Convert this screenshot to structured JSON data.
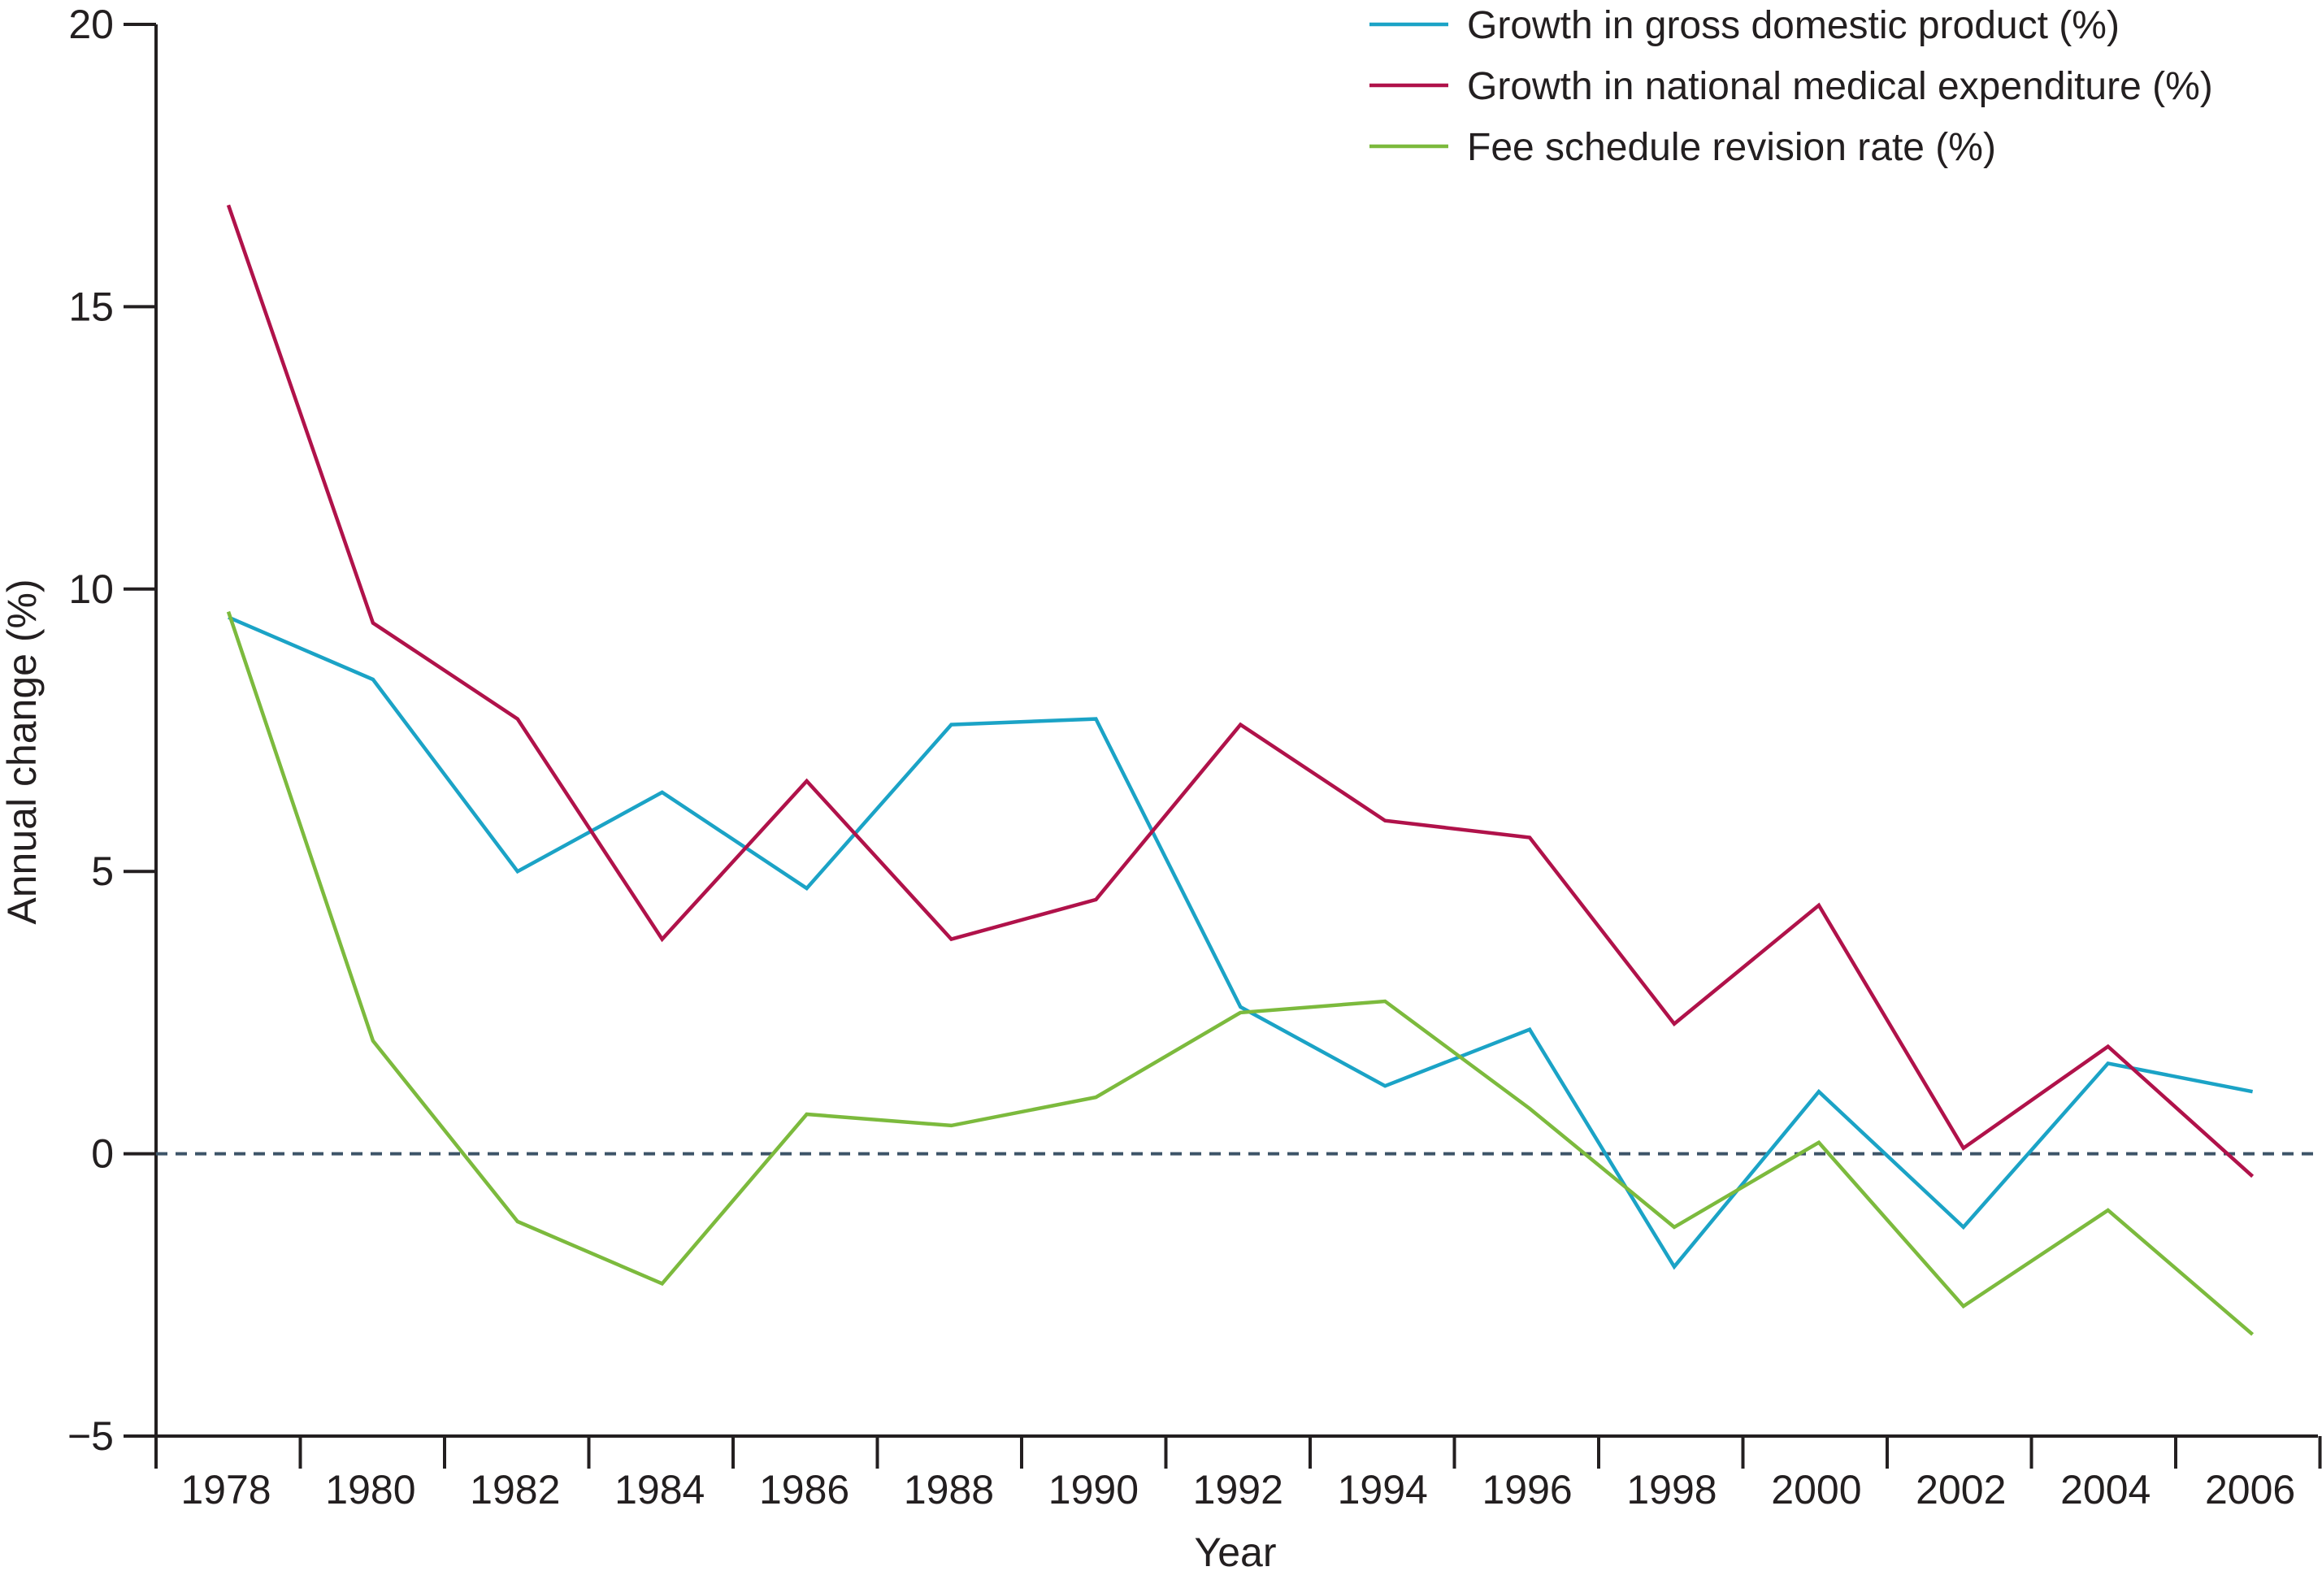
{
  "chart_data": {
    "type": "line",
    "xlabel": "Year",
    "ylabel": "Annual change (%)",
    "ylim": [
      -5,
      20
    ],
    "y_ticks": [
      -5,
      0,
      5,
      10,
      15,
      20
    ],
    "y_tick_labels": [
      "−5",
      "0",
      "5",
      "10",
      "15",
      "20"
    ],
    "x_tick_labels": [
      "1978",
      "1980",
      "1982",
      "1984",
      "1986",
      "1988",
      "1990",
      "1992",
      "1994",
      "1996",
      "1998",
      "2000",
      "2002",
      "2004",
      "2006"
    ],
    "x": [
      "1978",
      "1980",
      "1982",
      "1984",
      "1986",
      "1988",
      "1990",
      "1992",
      "1994",
      "1996",
      "1998",
      "2000",
      "2002",
      "2004",
      "2006"
    ],
    "reference_line": {
      "y": 0,
      "style": "dashed",
      "color": "#3d5468"
    },
    "grid": false,
    "legend_position": "top-right",
    "series": [
      {
        "name": "Growth in gross domestic product (%)",
        "color": "#1ba3c6",
        "values": [
          9.5,
          8.4,
          5.0,
          6.4,
          4.7,
          7.6,
          7.7,
          2.6,
          1.2,
          2.2,
          -2.0,
          1.1,
          -1.3,
          1.6,
          1.1
        ]
      },
      {
        "name": "Growth in national medical expenditure (%)",
        "color": "#b0124a",
        "values": [
          16.8,
          9.4,
          7.7,
          3.8,
          6.6,
          3.8,
          4.5,
          7.6,
          5.9,
          5.6,
          2.3,
          4.4,
          0.1,
          1.9,
          -0.4
        ]
      },
      {
        "name": "Fee schedule revision rate (%)",
        "color": "#7cba3d",
        "values": [
          9.6,
          2.0,
          -1.2,
          -2.3,
          0.7,
          0.5,
          1.0,
          2.5,
          2.7,
          0.8,
          -1.3,
          0.2,
          -2.7,
          -1.0,
          -3.2
        ]
      }
    ]
  }
}
